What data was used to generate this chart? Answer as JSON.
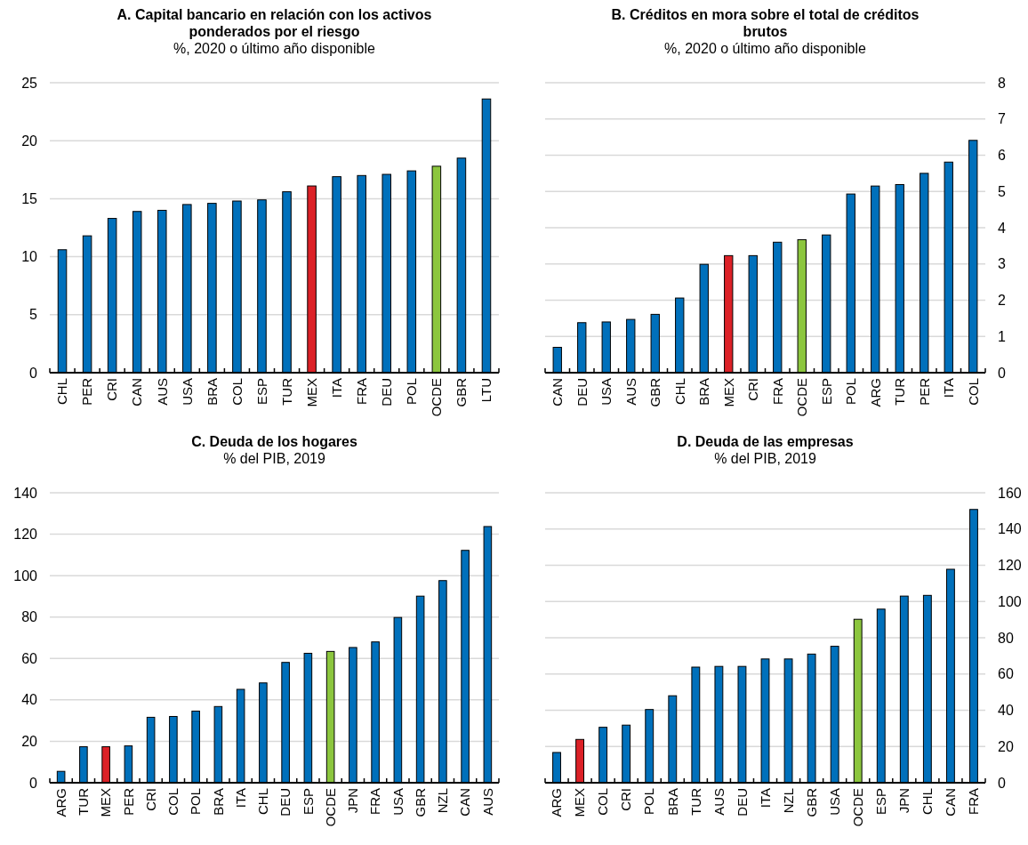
{
  "chart_data": [
    {
      "type": "bar",
      "title": "A. Capital bancario en relación con los activos ponderados por el riesgo",
      "subtitle": "%, 2020 o último año disponible",
      "categories": [
        "CHL",
        "PER",
        "CRI",
        "CAN",
        "AUS",
        "USA",
        "BRA",
        "COL",
        "ESP",
        "TUR",
        "MEX",
        "ITA",
        "FRA",
        "DEU",
        "POL",
        "OCDE",
        "GBR",
        "LTU"
      ],
      "values": [
        10.6,
        11.8,
        13.3,
        13.9,
        14.0,
        14.5,
        14.6,
        14.8,
        14.9,
        15.6,
        16.1,
        16.9,
        17.0,
        17.1,
        17.4,
        17.8,
        18.5,
        23.6
      ],
      "colors": [
        "#0070bb",
        "#0070bb",
        "#0070bb",
        "#0070bb",
        "#0070bb",
        "#0070bb",
        "#0070bb",
        "#0070bb",
        "#0070bb",
        "#0070bb",
        "#dc2127",
        "#0070bb",
        "#0070bb",
        "#0070bb",
        "#0070bb",
        "#8cc63e",
        "#0070bb",
        "#0070bb"
      ],
      "ylim": [
        0,
        25
      ],
      "yticks": [
        0,
        5,
        10,
        15,
        20,
        25
      ],
      "grid": "y"
    },
    {
      "type": "bar",
      "title": "B. Créditos en mora sobre el total de créditos brutos",
      "subtitle": "%, 2020 o último año disponible",
      "categories": [
        "CAN",
        "DEU",
        "USA",
        "AUS",
        "GBR",
        "CHL",
        "BRA",
        "MEX",
        "CRI",
        "FRA",
        "OCDE",
        "ESP",
        "POL",
        "ARG",
        "TUR",
        "PER",
        "ITA",
        "COL"
      ],
      "series": [
        {
          "axis": "y2",
          "values": [
            0.7,
            1.38,
            1.4,
            1.47,
            1.61,
            2.06,
            2.99,
            3.23,
            3.23,
            3.6,
            3.67,
            3.8,
            4.93,
            5.15,
            5.19,
            5.5,
            5.81,
            6.41
          ]
        }
      ],
      "colors": [
        "#0070bb",
        "#0070bb",
        "#0070bb",
        "#0070bb",
        "#0070bb",
        "#0070bb",
        "#0070bb",
        "#dc2127",
        "#0070bb",
        "#0070bb",
        "#8cc63e",
        "#0070bb",
        "#0070bb",
        "#0070bb",
        "#0070bb",
        "#0070bb",
        "#0070bb",
        "#0070bb"
      ],
      "y2lim": [
        0,
        8
      ],
      "y2ticks": [
        0,
        1,
        2,
        3,
        4,
        5,
        6,
        7,
        8
      ],
      "grid": "y"
    },
    {
      "type": "bar",
      "title": "C. Deuda de los hogares",
      "subtitle": "% del PIB, 2019",
      "categories": [
        "ARG",
        "TUR",
        "MEX",
        "PER",
        "CRI",
        "COL",
        "POL",
        "BRA",
        "ITA",
        "CHL",
        "DEU",
        "ESP",
        "OCDE",
        "JPN",
        "FRA",
        "USA",
        "GBR",
        "NZL",
        "CAN",
        "AUS"
      ],
      "values": [
        5.5,
        17.4,
        17.4,
        17.8,
        31.6,
        32,
        34.6,
        36.8,
        45.1,
        48.2,
        58.1,
        62.5,
        63.4,
        65.3,
        68,
        79.8,
        90.1,
        97.6,
        112.2,
        123.7
      ],
      "colors": [
        "#0070bb",
        "#0070bb",
        "#dc2127",
        "#0070bb",
        "#0070bb",
        "#0070bb",
        "#0070bb",
        "#0070bb",
        "#0070bb",
        "#0070bb",
        "#0070bb",
        "#0070bb",
        "#8cc63e",
        "#0070bb",
        "#0070bb",
        "#0070bb",
        "#0070bb",
        "#0070bb",
        "#0070bb",
        "#0070bb"
      ],
      "ylim": [
        0,
        140
      ],
      "yticks": [
        0,
        20,
        40,
        60,
        80,
        100,
        120,
        140
      ],
      "grid": "y"
    },
    {
      "type": "bar",
      "title": "D. Deuda de las empresas",
      "subtitle": "% del PIB, 2019",
      "categories": [
        "ARG",
        "MEX",
        "COL",
        "CRI",
        "POL",
        "BRA",
        "TUR",
        "AUS",
        "DEU",
        "ITA",
        "NZL",
        "GBR",
        "USA",
        "OCDE",
        "ESP",
        "JPN",
        "CHL",
        "CAN",
        "FRA"
      ],
      "series": [
        {
          "axis": "y2",
          "values": [
            16.7,
            23.9,
            30.6,
            31.8,
            40.4,
            48,
            63.8,
            64.2,
            64.2,
            68.3,
            68.3,
            71,
            75.3,
            90.2,
            95.8,
            103,
            103.4,
            117.8,
            150.8
          ]
        }
      ],
      "colors": [
        "#0070bb",
        "#dc2127",
        "#0070bb",
        "#0070bb",
        "#0070bb",
        "#0070bb",
        "#0070bb",
        "#0070bb",
        "#0070bb",
        "#0070bb",
        "#0070bb",
        "#0070bb",
        "#0070bb",
        "#8cc63e",
        "#0070bb",
        "#0070bb",
        "#0070bb",
        "#0070bb",
        "#0070bb"
      ],
      "y2lim": [
        0,
        160
      ],
      "y2ticks": [
        0,
        20,
        40,
        60,
        80,
        100,
        120,
        140,
        160
      ],
      "grid": "y"
    }
  ]
}
